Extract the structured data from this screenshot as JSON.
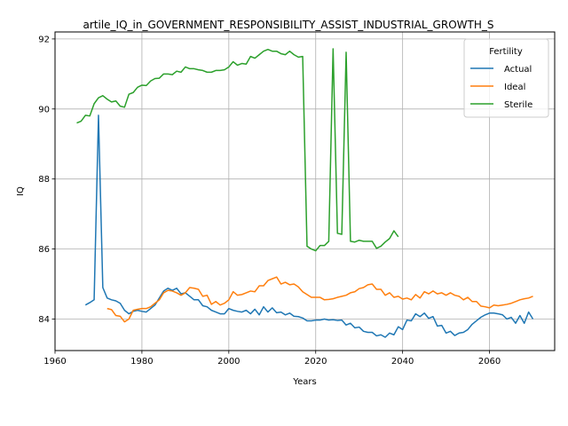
{
  "chart_data": {
    "type": "line",
    "title": "artile_IQ_in_GOVERNMENT_RESPONSIBILITY_ASSIST_INDUSTRIAL_GROWTH_S",
    "xlabel": "Years",
    "ylabel": "IQ",
    "xlim": [
      1960,
      2075
    ],
    "ylim": [
      83.1,
      92.2
    ],
    "xticks": [
      1960,
      1980,
      2000,
      2020,
      2040,
      2060
    ],
    "yticks": [
      84,
      86,
      88,
      90,
      92
    ],
    "grid": true,
    "legend": {
      "title": "Fertility",
      "placement": "top-right"
    },
    "series": [
      {
        "name": "Actual",
        "color": "#1f77b4",
        "points": [
          [
            1967,
            84.4
          ],
          [
            1968,
            84.47
          ],
          [
            1969,
            84.55
          ],
          [
            1970,
            89.82
          ],
          [
            1971,
            84.9
          ],
          [
            1972,
            84.6
          ],
          [
            1973,
            84.55
          ],
          [
            1974,
            84.52
          ],
          [
            1975,
            84.45
          ],
          [
            1976,
            84.25
          ],
          [
            1977,
            84.15
          ],
          [
            1978,
            84.22
          ],
          [
            1979,
            84.25
          ],
          [
            1980,
            84.22
          ],
          [
            1981,
            84.2
          ],
          [
            1982,
            84.3
          ],
          [
            1983,
            84.4
          ],
          [
            1984,
            84.6
          ],
          [
            1985,
            84.8
          ],
          [
            1986,
            84.88
          ],
          [
            1987,
            84.82
          ],
          [
            1988,
            84.88
          ],
          [
            1989,
            84.72
          ],
          [
            1990,
            84.75
          ],
          [
            1991,
            84.65
          ],
          [
            1992,
            84.55
          ],
          [
            1993,
            84.55
          ],
          [
            1994,
            84.38
          ],
          [
            1995,
            84.35
          ],
          [
            1996,
            84.25
          ],
          [
            1997,
            84.2
          ],
          [
            1998,
            84.15
          ],
          [
            1999,
            84.15
          ],
          [
            2000,
            84.3
          ],
          [
            2001,
            84.25
          ],
          [
            2002,
            84.22
          ],
          [
            2003,
            84.2
          ],
          [
            2004,
            84.25
          ],
          [
            2005,
            84.15
          ],
          [
            2006,
            84.28
          ],
          [
            2007,
            84.12
          ],
          [
            2008,
            84.35
          ],
          [
            2009,
            84.2
          ],
          [
            2010,
            84.32
          ],
          [
            2011,
            84.18
          ],
          [
            2012,
            84.2
          ],
          [
            2013,
            84.12
          ],
          [
            2014,
            84.17
          ],
          [
            2015,
            84.08
          ],
          [
            2016,
            84.07
          ],
          [
            2017,
            84.03
          ],
          [
            2018,
            83.95
          ],
          [
            2019,
            83.95
          ],
          [
            2020,
            83.97
          ],
          [
            2021,
            83.97
          ],
          [
            2022,
            84.0
          ],
          [
            2023,
            83.97
          ],
          [
            2024,
            83.98
          ],
          [
            2025,
            83.96
          ],
          [
            2026,
            83.97
          ],
          [
            2027,
            83.83
          ],
          [
            2028,
            83.88
          ],
          [
            2029,
            83.75
          ],
          [
            2030,
            83.77
          ],
          [
            2031,
            83.65
          ],
          [
            2032,
            83.62
          ],
          [
            2033,
            83.62
          ],
          [
            2034,
            83.52
          ],
          [
            2035,
            83.55
          ],
          [
            2036,
            83.48
          ],
          [
            2037,
            83.6
          ],
          [
            2038,
            83.55
          ],
          [
            2039,
            83.78
          ],
          [
            2040,
            83.7
          ],
          [
            2041,
            83.97
          ],
          [
            2042,
            83.95
          ],
          [
            2043,
            84.15
          ],
          [
            2044,
            84.07
          ],
          [
            2045,
            84.17
          ],
          [
            2046,
            84.02
          ],
          [
            2047,
            84.07
          ],
          [
            2048,
            83.8
          ],
          [
            2049,
            83.82
          ],
          [
            2050,
            83.6
          ],
          [
            2051,
            83.65
          ],
          [
            2052,
            83.53
          ],
          [
            2053,
            83.6
          ],
          [
            2054,
            83.62
          ],
          [
            2055,
            83.7
          ],
          [
            2056,
            83.85
          ],
          [
            2057,
            83.95
          ],
          [
            2058,
            84.05
          ],
          [
            2059,
            84.12
          ],
          [
            2060,
            84.17
          ],
          [
            2061,
            84.17
          ],
          [
            2062,
            84.15
          ],
          [
            2063,
            84.12
          ],
          [
            2064,
            84.0
          ],
          [
            2065,
            84.05
          ],
          [
            2066,
            83.88
          ],
          [
            2067,
            84.1
          ],
          [
            2068,
            83.88
          ],
          [
            2069,
            84.2
          ],
          [
            2070,
            84.0
          ]
        ]
      },
      {
        "name": "Ideal",
        "color": "#ff7f0e",
        "points": [
          [
            1972,
            84.3
          ],
          [
            1973,
            84.27
          ],
          [
            1974,
            84.1
          ],
          [
            1975,
            84.08
          ],
          [
            1976,
            83.92
          ],
          [
            1977,
            84.0
          ],
          [
            1978,
            84.25
          ],
          [
            1979,
            84.28
          ],
          [
            1980,
            84.3
          ],
          [
            1981,
            84.3
          ],
          [
            1982,
            84.35
          ],
          [
            1983,
            84.45
          ],
          [
            1984,
            84.55
          ],
          [
            1985,
            84.75
          ],
          [
            1986,
            84.82
          ],
          [
            1987,
            84.8
          ],
          [
            1988,
            84.75
          ],
          [
            1989,
            84.68
          ],
          [
            1990,
            84.75
          ],
          [
            1991,
            84.9
          ],
          [
            1992,
            84.88
          ],
          [
            1993,
            84.85
          ],
          [
            1994,
            84.65
          ],
          [
            1995,
            84.68
          ],
          [
            1996,
            84.42
          ],
          [
            1997,
            84.5
          ],
          [
            1998,
            84.4
          ],
          [
            1999,
            84.45
          ],
          [
            2000,
            84.55
          ],
          [
            2001,
            84.78
          ],
          [
            2002,
            84.68
          ],
          [
            2003,
            84.7
          ],
          [
            2004,
            84.75
          ],
          [
            2005,
            84.8
          ],
          [
            2006,
            84.78
          ],
          [
            2007,
            84.95
          ],
          [
            2008,
            84.95
          ],
          [
            2009,
            85.1
          ],
          [
            2010,
            85.15
          ],
          [
            2011,
            85.2
          ],
          [
            2012,
            85.0
          ],
          [
            2013,
            85.05
          ],
          [
            2014,
            84.98
          ],
          [
            2015,
            85.0
          ],
          [
            2016,
            84.92
          ],
          [
            2017,
            84.78
          ],
          [
            2018,
            84.7
          ],
          [
            2019,
            84.62
          ],
          [
            2020,
            84.62
          ],
          [
            2021,
            84.62
          ],
          [
            2022,
            84.55
          ],
          [
            2023,
            84.56
          ],
          [
            2024,
            84.58
          ],
          [
            2025,
            84.62
          ],
          [
            2026,
            84.65
          ],
          [
            2027,
            84.68
          ],
          [
            2028,
            84.75
          ],
          [
            2029,
            84.78
          ],
          [
            2030,
            84.87
          ],
          [
            2031,
            84.9
          ],
          [
            2032,
            84.98
          ],
          [
            2033,
            85.0
          ],
          [
            2034,
            84.85
          ],
          [
            2035,
            84.85
          ],
          [
            2036,
            84.68
          ],
          [
            2037,
            84.75
          ],
          [
            2038,
            84.62
          ],
          [
            2039,
            84.65
          ],
          [
            2040,
            84.57
          ],
          [
            2041,
            84.6
          ],
          [
            2042,
            84.55
          ],
          [
            2043,
            84.7
          ],
          [
            2044,
            84.6
          ],
          [
            2045,
            84.78
          ],
          [
            2046,
            84.72
          ],
          [
            2047,
            84.8
          ],
          [
            2048,
            84.72
          ],
          [
            2049,
            84.75
          ],
          [
            2050,
            84.68
          ],
          [
            2051,
            84.75
          ],
          [
            2052,
            84.68
          ],
          [
            2053,
            84.65
          ],
          [
            2054,
            84.55
          ],
          [
            2055,
            84.62
          ],
          [
            2056,
            84.5
          ],
          [
            2057,
            84.5
          ],
          [
            2058,
            84.37
          ],
          [
            2059,
            84.35
          ],
          [
            2060,
            84.32
          ],
          [
            2061,
            84.4
          ],
          [
            2062,
            84.38
          ],
          [
            2063,
            84.4
          ],
          [
            2064,
            84.42
          ],
          [
            2065,
            84.45
          ],
          [
            2066,
            84.5
          ],
          [
            2067,
            84.55
          ],
          [
            2068,
            84.58
          ],
          [
            2069,
            84.6
          ],
          [
            2070,
            84.65
          ]
        ]
      },
      {
        "name": "Sterile",
        "color": "#2ca02c",
        "points": [
          [
            1965,
            89.6
          ],
          [
            1966,
            89.65
          ],
          [
            1967,
            89.82
          ],
          [
            1968,
            89.8
          ],
          [
            1969,
            90.15
          ],
          [
            1970,
            90.32
          ],
          [
            1971,
            90.38
          ],
          [
            1972,
            90.28
          ],
          [
            1973,
            90.2
          ],
          [
            1974,
            90.23
          ],
          [
            1975,
            90.08
          ],
          [
            1976,
            90.05
          ],
          [
            1977,
            90.42
          ],
          [
            1978,
            90.47
          ],
          [
            1979,
            90.62
          ],
          [
            1980,
            90.68
          ],
          [
            1981,
            90.67
          ],
          [
            1982,
            90.8
          ],
          [
            1983,
            90.87
          ],
          [
            1984,
            90.88
          ],
          [
            1985,
            91.0
          ],
          [
            1986,
            91.0
          ],
          [
            1987,
            90.98
          ],
          [
            1988,
            91.08
          ],
          [
            1989,
            91.05
          ],
          [
            1990,
            91.2
          ],
          [
            1991,
            91.15
          ],
          [
            1992,
            91.15
          ],
          [
            1993,
            91.12
          ],
          [
            1994,
            91.1
          ],
          [
            1995,
            91.05
          ],
          [
            1996,
            91.05
          ],
          [
            1997,
            91.1
          ],
          [
            1998,
            91.1
          ],
          [
            1999,
            91.12
          ],
          [
            2000,
            91.2
          ],
          [
            2001,
            91.35
          ],
          [
            2002,
            91.25
          ],
          [
            2003,
            91.3
          ],
          [
            2004,
            91.28
          ],
          [
            2005,
            91.5
          ],
          [
            2006,
            91.45
          ],
          [
            2007,
            91.55
          ],
          [
            2008,
            91.65
          ],
          [
            2009,
            91.7
          ],
          [
            2010,
            91.65
          ],
          [
            2011,
            91.65
          ],
          [
            2012,
            91.58
          ],
          [
            2013,
            91.55
          ],
          [
            2014,
            91.65
          ],
          [
            2015,
            91.55
          ],
          [
            2016,
            91.48
          ],
          [
            2017,
            91.5
          ],
          [
            2018,
            86.08
          ],
          [
            2019,
            86.0
          ],
          [
            2020,
            85.95
          ],
          [
            2021,
            86.1
          ],
          [
            2022,
            86.1
          ],
          [
            2023,
            86.22
          ],
          [
            2024,
            91.72
          ],
          [
            2025,
            86.45
          ],
          [
            2026,
            86.42
          ],
          [
            2027,
            91.62
          ],
          [
            2028,
            86.22
          ],
          [
            2029,
            86.2
          ],
          [
            2030,
            86.25
          ],
          [
            2031,
            86.22
          ],
          [
            2032,
            86.22
          ],
          [
            2033,
            86.22
          ],
          [
            2034,
            86.02
          ],
          [
            2035,
            86.08
          ],
          [
            2036,
            86.2
          ],
          [
            2037,
            86.3
          ],
          [
            2038,
            86.52
          ],
          [
            2039,
            86.35
          ]
        ]
      }
    ]
  }
}
